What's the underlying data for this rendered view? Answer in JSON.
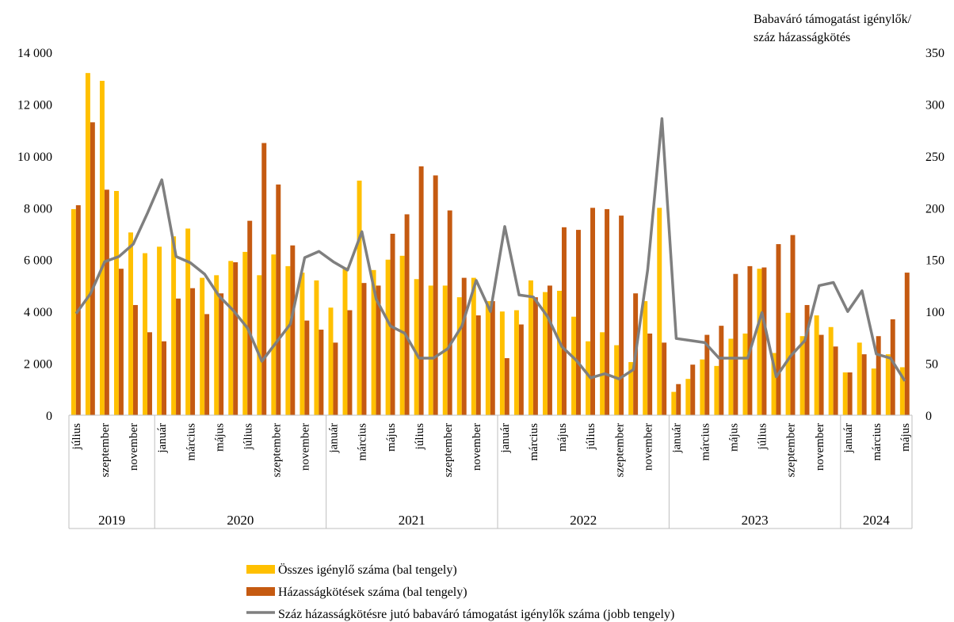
{
  "chart_data": {
    "type": "bar+line",
    "y2label": [
      "Babaváró támogatást igénylők/",
      "száz házasságkötés"
    ],
    "ylim": [
      0,
      14000
    ],
    "y2lim": [
      0,
      350
    ],
    "yticks": [
      "0",
      "2 000",
      "4 000",
      "6 000",
      "8 000",
      "10 000",
      "12 000",
      "14 000"
    ],
    "y2ticks": [
      "0",
      "50",
      "100",
      "150",
      "200",
      "250",
      "300",
      "350"
    ],
    "month_labels": [
      "július",
      "szeptember",
      "november",
      "január",
      "március",
      "május",
      "július",
      "szeptember",
      "november",
      "január",
      "március",
      "május",
      "július",
      "szeptember",
      "november",
      "január",
      "március",
      "május",
      "július",
      "szeptember",
      "november",
      "január",
      "március",
      "május",
      "július",
      "szeptember",
      "november",
      "január",
      "március",
      "május"
    ],
    "years": [
      {
        "label": "2019",
        "months": 6
      },
      {
        "label": "2020",
        "months": 12
      },
      {
        "label": "2021",
        "months": 12
      },
      {
        "label": "2022",
        "months": 12
      },
      {
        "label": "2023",
        "months": 12
      },
      {
        "label": "2024",
        "months": 5
      }
    ],
    "series": [
      {
        "name": "Összes igénylő száma (bal tengely)",
        "kind": "bar",
        "axis": "left",
        "color": "#FFC000",
        "values": [
          7950,
          13200,
          12900,
          8650,
          7050,
          6250,
          6500,
          6900,
          7200,
          5300,
          5400,
          5950,
          6300,
          5400,
          6200,
          5750,
          5500,
          5200,
          4150,
          5700,
          9050,
          5600,
          6000,
          6150,
          5250,
          5000,
          5000,
          4550,
          5300,
          4400,
          4000,
          4050,
          5200,
          4750,
          4800,
          3800,
          2850,
          3200,
          2700,
          2050,
          4400,
          8000,
          900,
          1400,
          2150,
          1900,
          2950,
          3150,
          5650,
          2400,
          3950,
          3050,
          3850,
          3400,
          1650,
          2800,
          1800,
          2350,
          1850
        ]
      },
      {
        "name": "Házasságkötések száma (bal tengely)",
        "kind": "bar",
        "axis": "left",
        "color": "#C55A11",
        "values": [
          8100,
          11300,
          8700,
          5650,
          4250,
          3200,
          2850,
          4500,
          4900,
          3900,
          4700,
          5900,
          7500,
          10500,
          8900,
          6550,
          3650,
          3300,
          2800,
          4050,
          5100,
          5000,
          7000,
          7750,
          9600,
          9250,
          7900,
          5300,
          3850,
          4400,
          2200,
          3500,
          4550,
          5000,
          7250,
          7150,
          8000,
          7950,
          7700,
          4700,
          3150,
          2800,
          1200,
          1950,
          3100,
          3450,
          5450,
          5750,
          5700,
          6600,
          6950,
          4250,
          3100,
          2650,
          1650,
          2350,
          3050,
          3700,
          5500
        ]
      },
      {
        "name": "Száz házasságkötésre jutó babaváró támogatást igénylők száma (jobb tengely)",
        "kind": "line",
        "axis": "right",
        "color": "#7F7F7F",
        "values": [
          98,
          117,
          148,
          153,
          165,
          195,
          227,
          153,
          147,
          136,
          115,
          101,
          84,
          52,
          70,
          88,
          152,
          158,
          148,
          140,
          177,
          112,
          86,
          79,
          55,
          55,
          64,
          86,
          130,
          100,
          182,
          116,
          114,
          95,
          66,
          53,
          36,
          40,
          35,
          44,
          140,
          286,
          74,
          72,
          70,
          55,
          55,
          55,
          99,
          37,
          57,
          72,
          125,
          128,
          100,
          120,
          59,
          55,
          33
        ]
      }
    ]
  }
}
